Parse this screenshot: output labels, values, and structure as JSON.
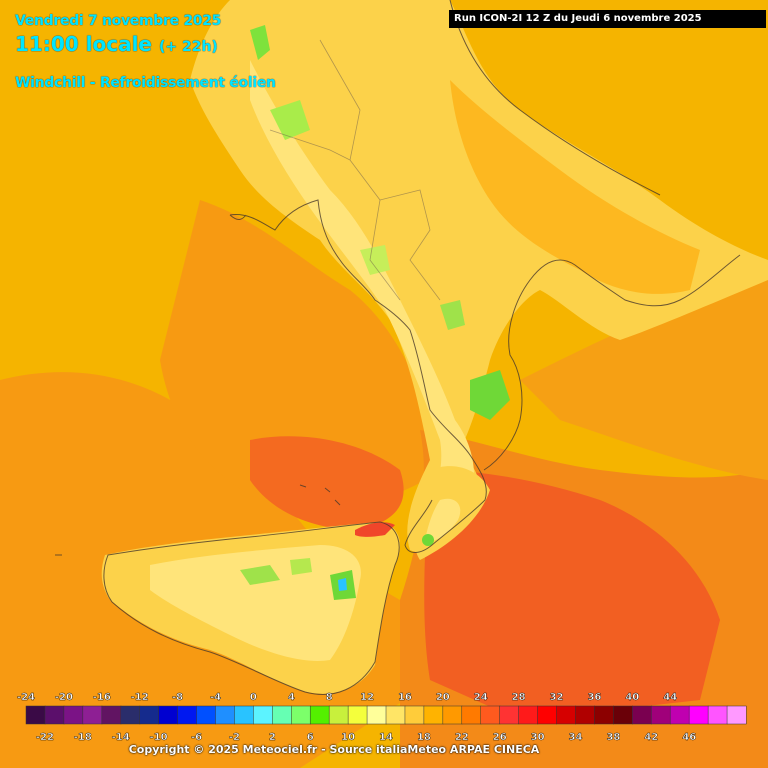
{
  "header": {
    "date_line": "Vendredi 7 novembre 2025",
    "time_main": "11:00 locale",
    "time_offset": "(+ 22h)",
    "variable": "Windchill - Refroidissement éolien",
    "run_info": "Run ICON-2I 12 Z du Jeudi 6 novembre 2025"
  },
  "legend": {
    "top_labels": [
      "-24",
      "-20",
      "-16",
      "-12",
      "-8",
      "-4",
      "0",
      "4",
      "8",
      "12",
      "16",
      "20",
      "24",
      "28",
      "32",
      "36",
      "40",
      "44"
    ],
    "bottom_labels": [
      "-22",
      "-18",
      "-14",
      "-10",
      "-6",
      "-2",
      "2",
      "6",
      "10",
      "14",
      "18",
      "22",
      "26",
      "30",
      "34",
      "38",
      "42",
      "46"
    ],
    "colors": [
      "#3a0a46",
      "#5b0f6b",
      "#7b1386",
      "#8e1f94",
      "#611462",
      "#2a2d6b",
      "#152b8d",
      "#0000d0",
      "#0018f0",
      "#0050ff",
      "#1f8fff",
      "#29c3ff",
      "#5cf3ff",
      "#66ffb3",
      "#7cff6a",
      "#54f000",
      "#c8f03c",
      "#f4ff3c",
      "#ffff9a",
      "#ffe566",
      "#ffcc3a",
      "#ffb300",
      "#ff9900",
      "#ff7a00",
      "#ff5a1e",
      "#ff3333",
      "#ff1a1a",
      "#ff0000",
      "#d60000",
      "#b00000",
      "#8c0000",
      "#6a0008",
      "#7a0050",
      "#a0007a",
      "#c000b0",
      "#ff00ff",
      "#ff55ff",
      "#ff99ff"
    ]
  },
  "footer": {
    "copyright": "Copyright © 2025 Meteociel.fr - Source italiaMeteo ARPAE CINECA"
  }
}
